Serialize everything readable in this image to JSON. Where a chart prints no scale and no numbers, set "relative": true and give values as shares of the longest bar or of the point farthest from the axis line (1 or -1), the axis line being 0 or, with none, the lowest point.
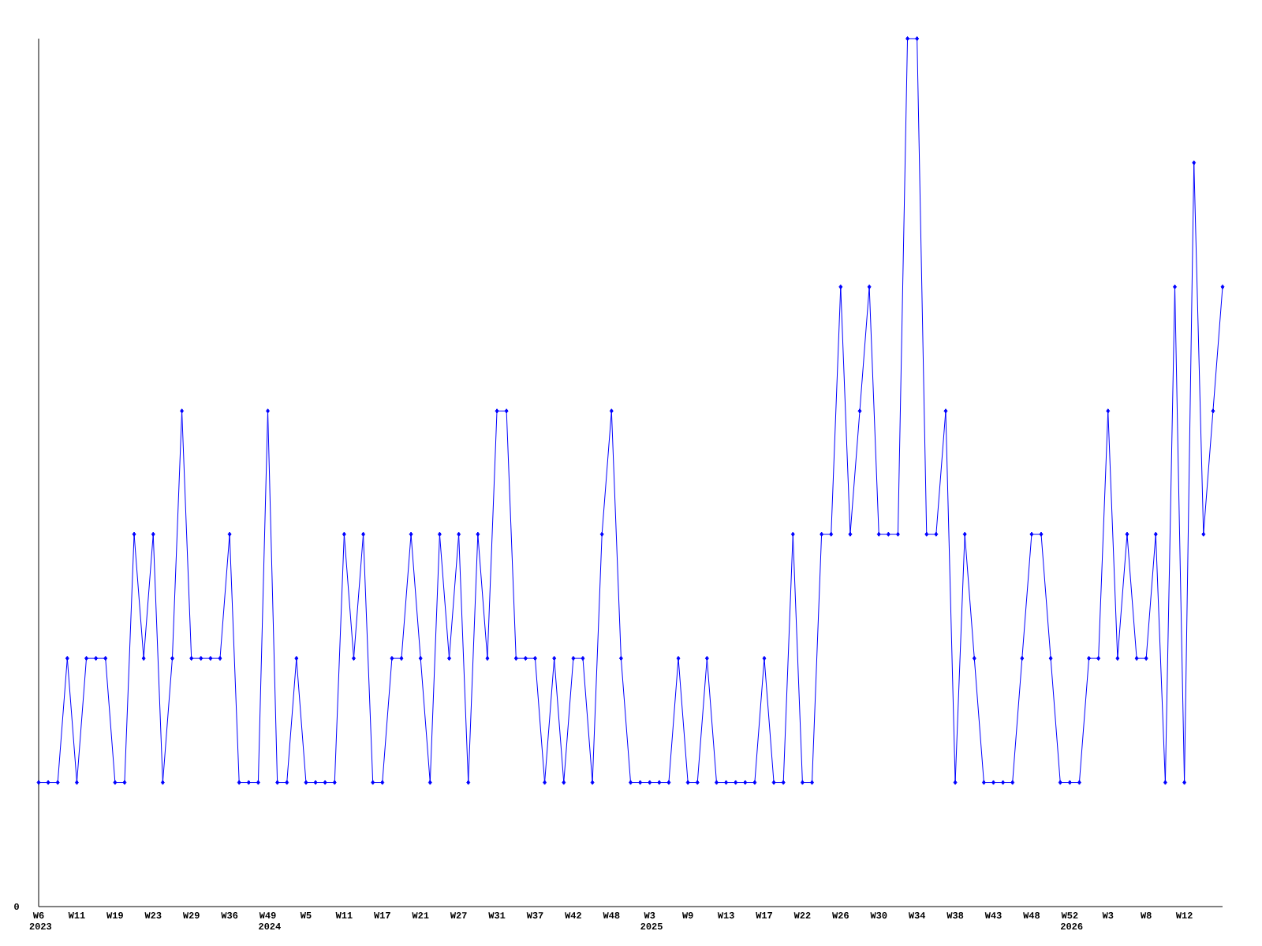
{
  "chart_data": {
    "type": "line",
    "relative": true,
    "color": "#0000ff",
    "marker": "diamond",
    "line_style": "solid",
    "grid": false,
    "categories": [
      "W6 2023",
      null,
      null,
      null,
      "W11",
      null,
      null,
      null,
      "W19",
      null,
      null,
      null,
      "W23",
      null,
      null,
      null,
      "W29",
      null,
      null,
      null,
      "W36",
      null,
      null,
      null,
      "W49 2024",
      null,
      null,
      null,
      "W5",
      null,
      null,
      null,
      "W11",
      null,
      null,
      null,
      "W17",
      null,
      null,
      null,
      "W21",
      null,
      null,
      null,
      "W27",
      null,
      null,
      null,
      "W31",
      null,
      null,
      null,
      "W37",
      null,
      null,
      null,
      "W42",
      null,
      null,
      null,
      "W48",
      null,
      null,
      null,
      "W3 2025",
      null,
      null,
      null,
      "W9",
      null,
      null,
      null,
      "W13",
      null,
      null,
      null,
      "W17",
      null,
      null,
      null,
      "W22",
      null,
      null,
      null,
      "W26",
      null,
      null,
      null,
      "W30",
      null,
      null,
      null,
      "W34",
      null,
      null,
      null,
      "W38",
      null,
      null,
      null,
      "W43",
      null,
      null,
      null,
      "W48",
      null,
      null,
      null,
      "W52 2026",
      null,
      null,
      null,
      "W3",
      null,
      null,
      null,
      "W8",
      null,
      null,
      null,
      "W12",
      null,
      null,
      null,
      null
    ],
    "values": [
      0.143,
      0.143,
      0.143,
      0.286,
      0.143,
      0.286,
      0.286,
      0.286,
      0.143,
      0.143,
      0.429,
      0.286,
      0.429,
      0.143,
      0.286,
      0.571,
      0.286,
      0.286,
      0.286,
      0.286,
      0.429,
      0.143,
      0.143,
      0.143,
      0.571,
      0.143,
      0.143,
      0.286,
      0.143,
      0.143,
      0.143,
      0.143,
      0.429,
      0.286,
      0.429,
      0.143,
      0.143,
      0.286,
      0.286,
      0.429,
      0.286,
      0.143,
      0.429,
      0.286,
      0.429,
      0.143,
      0.429,
      0.286,
      0.571,
      0.571,
      0.286,
      0.286,
      0.286,
      0.143,
      0.286,
      0.143,
      0.286,
      0.286,
      0.143,
      0.429,
      0.571,
      0.286,
      0.143,
      0.143,
      0.143,
      0.143,
      0.143,
      0.286,
      0.143,
      0.143,
      0.286,
      0.143,
      0.143,
      0.143,
      0.143,
      0.143,
      0.286,
      0.143,
      0.143,
      0.429,
      0.143,
      0.143,
      0.429,
      0.429,
      0.714,
      0.429,
      0.571,
      0.714,
      0.429,
      0.429,
      0.429,
      1,
      1,
      0.429,
      0.429,
      0.571,
      0.143,
      0.429,
      0.286,
      0.143,
      0.143,
      0.143,
      0.143,
      0.286,
      0.429,
      0.429,
      0.286,
      0.143,
      0.143,
      0.143,
      0.286,
      0.286,
      0.571,
      0.286,
      0.429,
      0.286,
      0.286,
      0.429,
      0.143,
      0.714,
      0.143,
      0.857,
      0.429,
      0.571,
      0.714
    ],
    "annotations": [
      "0"
    ]
  }
}
